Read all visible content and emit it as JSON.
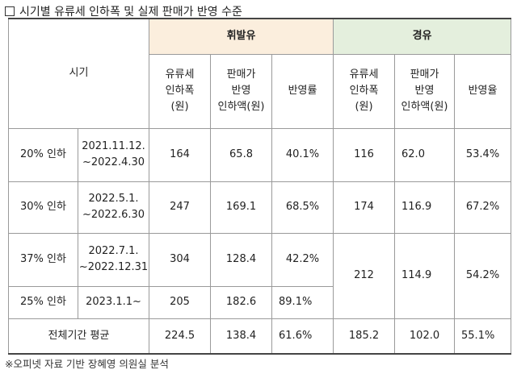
{
  "title": "시기별 유류세 인하폭 및 실제 판매가 반영 수준",
  "header": {
    "period": "시기",
    "gasoline": "휘발유",
    "diesel": "경유",
    "sub": {
      "cut_l1": "유류세",
      "cut_l2": "인하폭",
      "cut_l3": "(원)",
      "sale_l1": "판매가",
      "sale_l2": "반영",
      "sale_l3": "인하액(원)",
      "rate_gas": "반영률",
      "rate_diesel": "반영율"
    }
  },
  "rows": [
    {
      "cut": "20% 인하",
      "period_l1": "2021.11.12.",
      "period_l2": "~2022.4.30",
      "g_cut": "164",
      "g_sale": "65.8",
      "g_rate": "40.1%",
      "d_cut": "116",
      "d_sale": "62.0",
      "d_rate": "53.4%"
    },
    {
      "cut": "30% 인하",
      "period_l1": "2022.5.1.",
      "period_l2": "~2022.6.30",
      "g_cut": "247",
      "g_sale": "169.1",
      "g_rate": "68.5%",
      "d_cut": "174",
      "d_sale": "116.9",
      "d_rate": "67.2%"
    },
    {
      "cut": "37% 인하",
      "period_l1": "2022.7.1.",
      "period_l2": "~2022.12.31",
      "g_cut": "304",
      "g_sale": "128.4",
      "g_rate": "42.2%",
      "d_cut": "212",
      "d_sale": "114.9",
      "d_rate": "54.2%"
    },
    {
      "cut": "25% 인하",
      "period_l1": "2023.1.1~",
      "g_cut": "205",
      "g_sale": "182.6",
      "g_rate": "89.1%"
    }
  ],
  "average": {
    "label": "전체기간 평균",
    "g_cut": "224.5",
    "g_sale": "138.4",
    "g_rate": "61.6%",
    "d_cut": "185.2",
    "d_sale": "102.0",
    "d_rate": "55.1%"
  },
  "footnote": "※오피넷 자료 기반 장혜영 의원실 분석",
  "colors": {
    "gasoline_header": "#fbeedd",
    "diesel_header": "#e4efdd"
  }
}
